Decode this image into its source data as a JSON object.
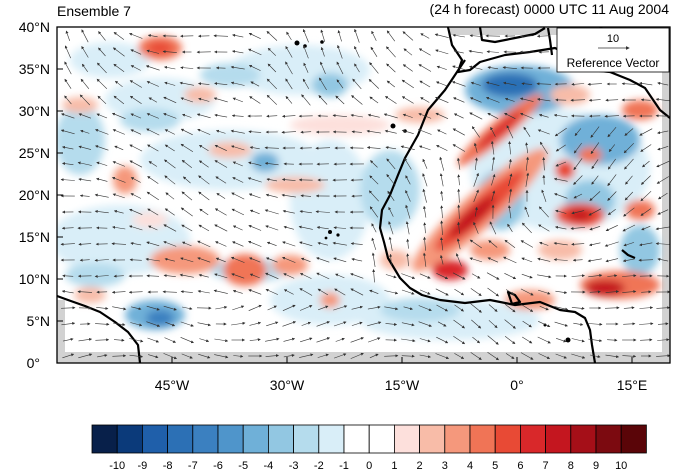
{
  "title_left": "Ensemble 7",
  "title_right": "(24 h forecast) 0000 UTC 11 Aug 2004",
  "y_axis_labels": [
    "40°N",
    "35°N",
    "30°N",
    "25°N",
    "20°N",
    "15°N",
    "10°N",
    "5°N",
    "0°"
  ],
  "x_axis_labels": [
    "45°W",
    "30°W",
    "15°W",
    "0°",
    "15°E"
  ],
  "reference_vector": {
    "magnitude": "10",
    "label": "Reference Vector"
  },
  "colorbar": {
    "labels": [
      "-10",
      "-9",
      "-8",
      "-7",
      "-6",
      "-5",
      "-4",
      "-3",
      "-2",
      "-1",
      "0",
      "1",
      "2",
      "3",
      "4",
      "5",
      "6",
      "7",
      "8",
      "9",
      "10"
    ],
    "colors": [
      "#08204a",
      "#0b3a7a",
      "#1f5faa",
      "#2c70b5",
      "#3b80c0",
      "#4f95cb",
      "#6fb0d8",
      "#92c7e2",
      "#b5dced",
      "#d9eef8",
      "#ffffff",
      "#ffffff",
      "#fde0dc",
      "#f8bca8",
      "#f5987c",
      "#f07456",
      "#e84a35",
      "#d9282a",
      "#c4161f",
      "#a50f18",
      "#7c0a10",
      "#5a0508"
    ]
  },
  "colors": {
    "land_gray": "#d2d2d2",
    "coast": "#000000",
    "vector": "#333333"
  }
}
